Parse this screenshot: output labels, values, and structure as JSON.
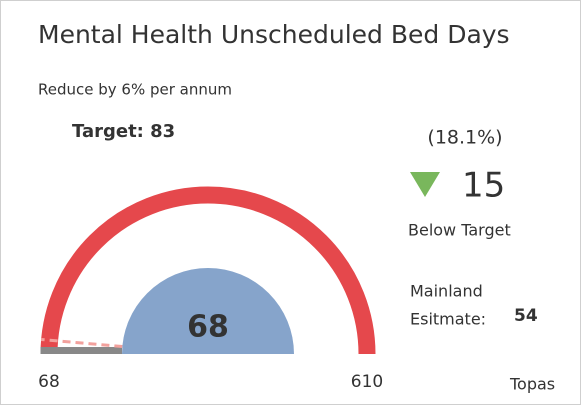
{
  "chart_data": {
    "type": "gauge",
    "title": "Mental Health Unscheduled Bed Days",
    "subtitle": "Reduce by 6% per annum",
    "value": 68,
    "target": {
      "value": 83,
      "label": "Target: 83"
    },
    "ylim": [
      68,
      610
    ],
    "yticks": [
      68,
      610
    ],
    "color": "#e5484c",
    "value_color": "#888888",
    "center_color": "#86a4cb",
    "target_color": "#f2a19d",
    "difference": 15,
    "difference_percent": {
      "value": 18.1,
      "label": "(18.1%)"
    },
    "difference_label": "Below Target",
    "difference_color": "#79b75c",
    "estimate_label": [
      "Mainland",
      "Esitmate:"
    ],
    "estimate": 54,
    "footer": "Topas"
  }
}
